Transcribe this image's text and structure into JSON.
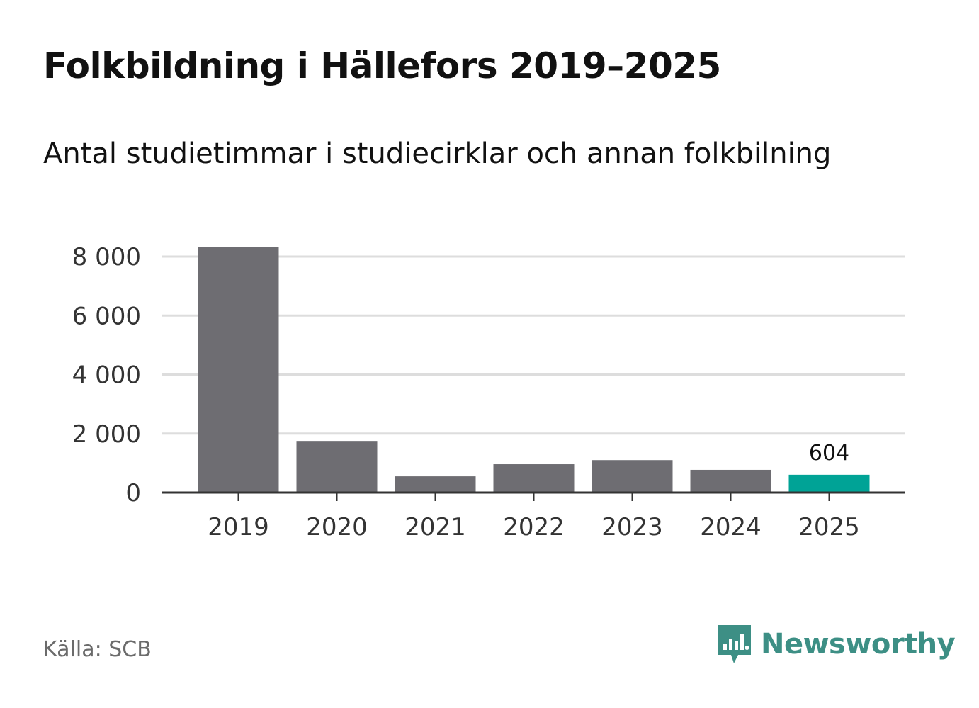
{
  "title": "Folkbildning i Hällefors 2019–2025",
  "subtitle": "Antal studietimmar i studiecirklar och annan folkbilning",
  "source": "Källa: SCB",
  "brand": {
    "name": "Newsworthy",
    "icon": "newsworthy-logo-icon"
  },
  "colors": {
    "bar": "#6e6d72",
    "highlight": "#00a396",
    "grid": "#dddddd",
    "axis": "#333333",
    "brand": "#3d8f85"
  },
  "chart_data": {
    "type": "bar",
    "title": "Folkbildning i Hällefors 2019–2025",
    "subtitle": "Antal studietimmar i studiecirklar och annan folkbilning",
    "xlabel": "",
    "ylabel": "",
    "categories": [
      "2019",
      "2020",
      "2021",
      "2022",
      "2023",
      "2024",
      "2025"
    ],
    "values": [
      8320,
      1750,
      550,
      960,
      1100,
      770,
      604
    ],
    "highlight_index": 6,
    "data_labels": [
      {
        "index": 6,
        "text": "604"
      }
    ],
    "ylim": [
      0,
      8000
    ],
    "yticks": [
      0,
      2000,
      4000,
      6000,
      8000
    ],
    "ytick_labels": [
      "0",
      "2 000",
      "4 000",
      "6 000",
      "8 000"
    ],
    "grid": true,
    "legend": "none"
  }
}
